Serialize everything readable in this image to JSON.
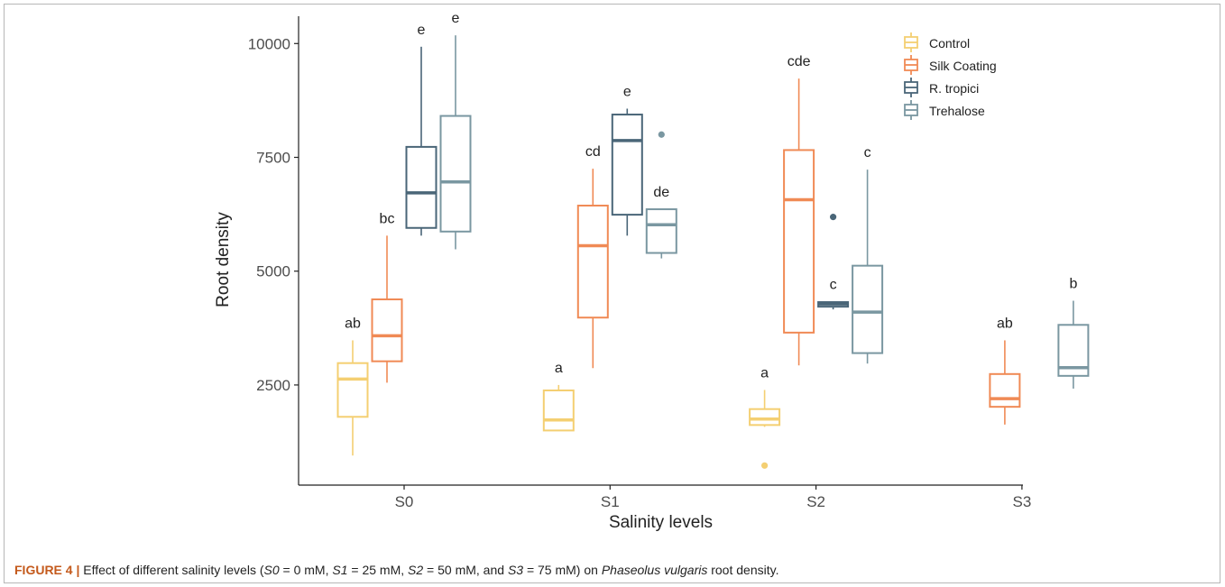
{
  "figure": {
    "caption_label": "FIGURE 4 |",
    "caption_parts": [
      {
        "text": " Effect of different salinity levels (",
        "italic": false
      },
      {
        "text": "S0",
        "italic": true
      },
      {
        "text": " = 0 mM, ",
        "italic": false
      },
      {
        "text": "S1",
        "italic": true
      },
      {
        "text": " = 25 mM, ",
        "italic": false
      },
      {
        "text": "S2",
        "italic": true
      },
      {
        "text": " = 50 mM, and ",
        "italic": false
      },
      {
        "text": "S3",
        "italic": true
      },
      {
        "text": " = 75 mM) on ",
        "italic": false
      },
      {
        "text": "Phaseolus vulgaris",
        "italic": true
      },
      {
        "text": " root density.",
        "italic": false
      }
    ]
  },
  "chart_data": {
    "type": "boxplot",
    "xlabel": "Salinity levels",
    "ylabel": "Root density",
    "categories": [
      "S0",
      "S1",
      "S2",
      "S3"
    ],
    "yticks": [
      2500,
      5000,
      7500,
      10000
    ],
    "ylim": [
      300,
      10600
    ],
    "grid": false,
    "legend_position": "top-right",
    "series": [
      {
        "name": "Control",
        "color": "#f4cf72",
        "boxes": [
          {
            "category": "S0",
            "min": 950,
            "q1": 1800,
            "median": 2630,
            "q3": 2980,
            "max": 3480,
            "outliers": [],
            "label": "ab"
          },
          {
            "category": "S1",
            "min": 1500,
            "q1": 1500,
            "median": 1730,
            "q3": 2380,
            "max": 2500,
            "outliers": [],
            "label": "a"
          },
          {
            "category": "S2",
            "min": 1580,
            "q1": 1620,
            "median": 1750,
            "q3": 1970,
            "max": 2390,
            "outliers": [
              730
            ],
            "label": "a"
          }
        ]
      },
      {
        "name": "Silk Coating",
        "color": "#f08a55",
        "boxes": [
          {
            "category": "S0",
            "min": 2550,
            "q1": 3020,
            "median": 3580,
            "q3": 4380,
            "max": 5780,
            "outliers": [],
            "label": "bc"
          },
          {
            "category": "S1",
            "min": 2870,
            "q1": 3980,
            "median": 5560,
            "q3": 6440,
            "max": 7250,
            "outliers": [],
            "label": "cd"
          },
          {
            "category": "S2",
            "min": 2930,
            "q1": 3650,
            "median": 6570,
            "q3": 7660,
            "max": 9230,
            "outliers": [],
            "label": "cde"
          },
          {
            "category": "S3",
            "min": 1630,
            "q1": 2020,
            "median": 2200,
            "q3": 2740,
            "max": 3480,
            "outliers": [],
            "label": "ab"
          }
        ]
      },
      {
        "name": "R. tropici",
        "color": "#4a6678",
        "boxes": [
          {
            "category": "S0",
            "min": 5780,
            "q1": 5950,
            "median": 6720,
            "q3": 7730,
            "max": 9930,
            "outliers": [],
            "label": "e"
          },
          {
            "category": "S1",
            "min": 5780,
            "q1": 6240,
            "median": 7870,
            "q3": 8440,
            "max": 8570,
            "outliers": [],
            "label": "e"
          },
          {
            "category": "S2",
            "min": 4160,
            "q1": 4220,
            "median": 4280,
            "q3": 4320,
            "max": 4330,
            "outliers": [
              6190
            ],
            "label": "c"
          }
        ]
      },
      {
        "name": "Trehalose",
        "color": "#7a97a1",
        "boxes": [
          {
            "category": "S0",
            "min": 5480,
            "q1": 5870,
            "median": 6960,
            "q3": 8410,
            "max": 10180,
            "outliers": [],
            "label": "e"
          },
          {
            "category": "S1",
            "min": 5280,
            "q1": 5400,
            "median": 6020,
            "q3": 6360,
            "max": 6360,
            "outliers": [
              8000
            ],
            "label": "de"
          },
          {
            "category": "S2",
            "min": 2970,
            "q1": 3200,
            "median": 4100,
            "q3": 5120,
            "max": 7230,
            "outliers": [],
            "label": "c"
          },
          {
            "category": "S3",
            "min": 2420,
            "q1": 2700,
            "median": 2880,
            "q3": 3820,
            "max": 4350,
            "outliers": [],
            "label": "b"
          }
        ]
      }
    ]
  }
}
